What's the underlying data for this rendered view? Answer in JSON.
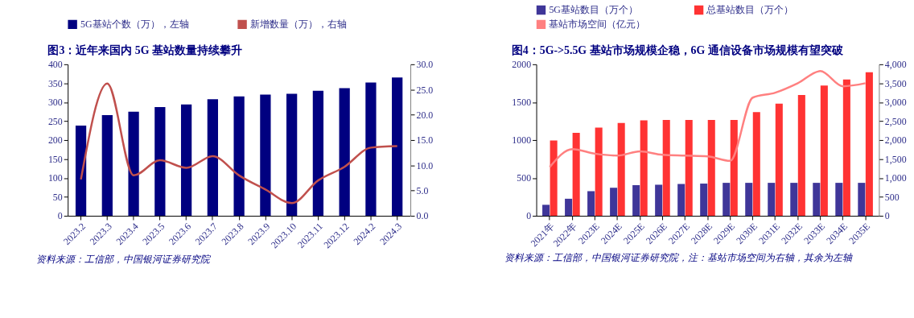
{
  "chart_data": [
    {
      "type": "bar",
      "title": "图3：近年来国内 5G 基站数量持续攀升",
      "categories": [
        "2023.2",
        "2023.3",
        "2023.4",
        "2023.5",
        "2023.6",
        "2023.7",
        "2023.8",
        "2023.9",
        "2023.10",
        "2023.11",
        "2023.12",
        "2024.2",
        "2024.3"
      ],
      "series": [
        {
          "name": "5G基站个数（万），左轴",
          "color": "#000080",
          "values": [
            238,
            266,
            275,
            287,
            294,
            308,
            315,
            320,
            322,
            330,
            337,
            352,
            365
          ]
        },
        {
          "name": "新增数量（万），右轴",
          "type": "line",
          "axis": "y2",
          "color": "#c0504d",
          "values": [
            7.2,
            26.2,
            8.0,
            11.0,
            9.5,
            11.8,
            8.0,
            5.2,
            2.5,
            7.0,
            9.7,
            13.5,
            13.8
          ]
        }
      ],
      "ylim": [
        0,
        400
      ],
      "yticks": [
        0,
        50,
        100,
        150,
        200,
        250,
        300,
        350,
        400
      ],
      "y2lim": [
        0,
        30
      ],
      "y2ticks": [
        {
          "value": 0,
          "label": "0.0"
        },
        {
          "value": 5,
          "label": "5.0"
        },
        {
          "value": 10,
          "label": "10.0"
        },
        {
          "value": 15,
          "label": "15.0"
        },
        {
          "value": 20,
          "label": "20.0"
        },
        {
          "value": 25,
          "label": "25.0"
        },
        {
          "value": 30,
          "label": "30.0"
        }
      ],
      "grid": false,
      "legend": "top",
      "annotations": [
        "资料来源：工信部，中国银河证券研究院"
      ]
    },
    {
      "type": "bar",
      "title": "图4：5G->5.5G 基站市场规模企稳，6G 通信设备市场规模有望突破",
      "categories": [
        "2021年",
        "2022年",
        "2023E",
        "2024E",
        "2025E",
        "2026E",
        "2027E",
        "2028E",
        "2029E",
        "2030E",
        "2031E",
        "2032E",
        "2033E",
        "2034E",
        "2035E"
      ],
      "series": [
        {
          "name": "5G基站数目（万个）",
          "color": "#3f3699",
          "values": [
            145,
            225,
            325,
            370,
            405,
            410,
            420,
            425,
            435,
            435,
            435,
            435,
            435,
            435,
            435
          ]
        },
        {
          "name": "总基站数目（万个）",
          "color": "#ff3333",
          "values": [
            995,
            1095,
            1165,
            1225,
            1260,
            1265,
            1265,
            1265,
            1265,
            1370,
            1480,
            1595,
            1720,
            1800,
            1895
          ]
        },
        {
          "name": "基站市场空间（亿元）",
          "type": "line",
          "axis": "y2",
          "color": "#ff8080",
          "values": [
            1290,
            1760,
            1640,
            1590,
            1700,
            1610,
            1590,
            1570,
            1450,
            3120,
            3250,
            3500,
            3820,
            3420,
            3500
          ]
        }
      ],
      "ylim": [
        0,
        2000
      ],
      "yticks": [
        0,
        500,
        1000,
        1500,
        2000
      ],
      "y2lim": [
        0,
        4000
      ],
      "y2ticks": [
        0,
        500,
        {
          "value": 1000,
          "label": "1,000"
        },
        {
          "value": 1500,
          "label": "1,500"
        },
        {
          "value": 2000,
          "label": "2,000"
        },
        {
          "value": 2500,
          "label": "2,500"
        },
        {
          "value": 3000,
          "label": "3,000"
        },
        {
          "value": 3500,
          "label": "3,500"
        },
        {
          "value": 4000,
          "label": "4,000"
        }
      ],
      "grid": false,
      "legend": "top",
      "annotations": [
        "资料来源：工信部，中国银河证券研究院，注：基站市场空间为右轴，其余为左轴"
      ]
    }
  ]
}
